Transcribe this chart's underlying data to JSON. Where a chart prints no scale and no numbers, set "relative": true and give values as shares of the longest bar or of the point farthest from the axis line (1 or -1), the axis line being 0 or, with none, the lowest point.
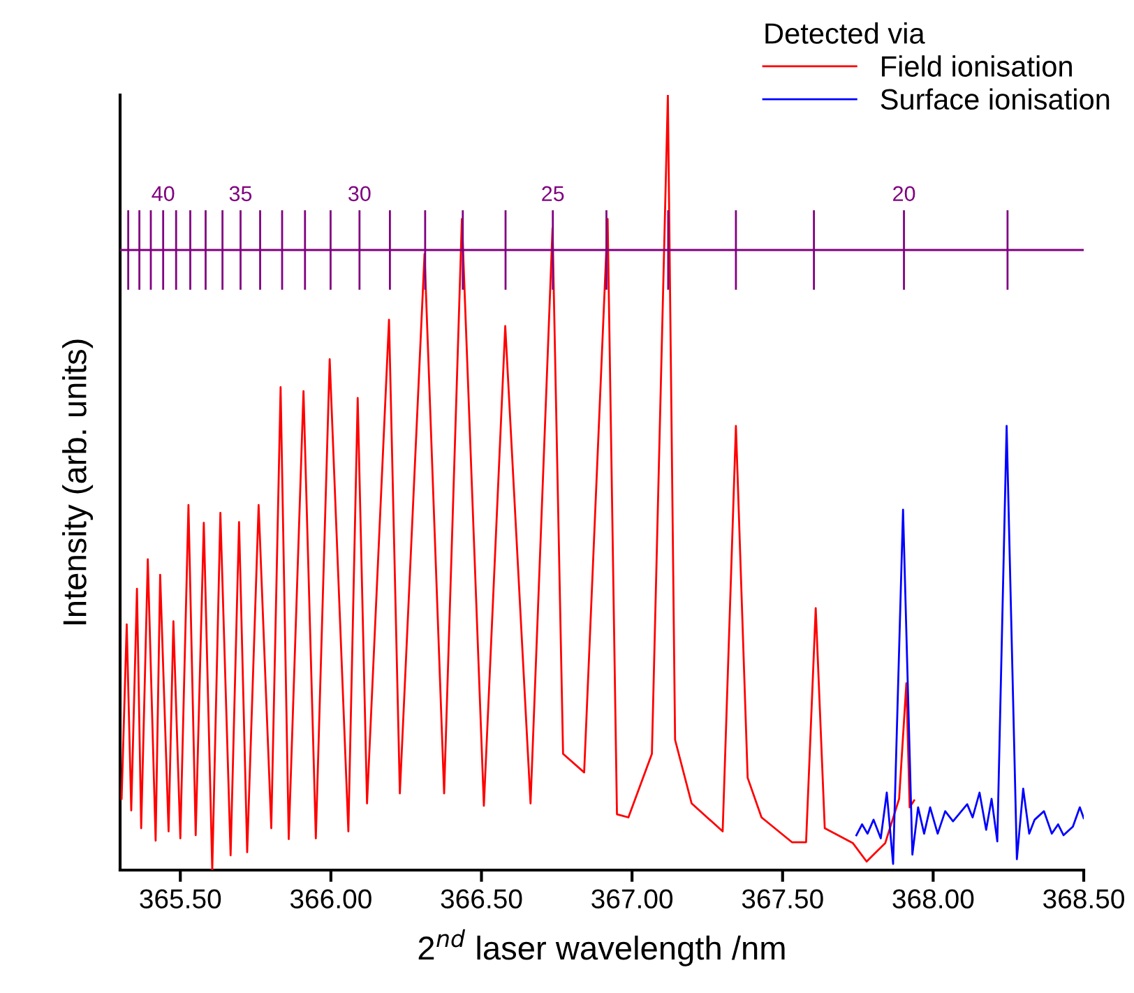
{
  "chart_data": {
    "type": "line",
    "relative": true,
    "xlabel": "2$^{nd}$ laser wavelength /nm",
    "ylabel": "Intensity (arb. units)",
    "legend_title": "Detected via",
    "legend": "top right",
    "grid": false,
    "xlim": [
      365.3,
      368.5
    ],
    "xticks": [
      {
        "value": 365.5,
        "label": "365.50"
      },
      {
        "value": 366.0,
        "label": "366.00"
      },
      {
        "value": 366.5,
        "label": "366.50"
      },
      {
        "value": 367.0,
        "label": "367.00"
      },
      {
        "value": 367.5,
        "label": "367.50"
      },
      {
        "value": 368.0,
        "label": "368.00"
      },
      {
        "value": 368.5,
        "label": "368.50"
      }
    ],
    "series": [
      {
        "name": "Field ionisation",
        "color": "#ff0000",
        "x": [
          365.305,
          365.322,
          365.337,
          365.356,
          365.37,
          365.392,
          365.418,
          365.433,
          365.461,
          365.477,
          365.5,
          365.527,
          365.551,
          365.578,
          365.606,
          365.633,
          365.667,
          365.695,
          365.722,
          365.76,
          365.802,
          365.833,
          365.86,
          365.909,
          365.95,
          365.996,
          366.058,
          366.089,
          366.12,
          366.193,
          366.229,
          366.311,
          366.376,
          366.435,
          366.508,
          366.579,
          366.663,
          366.736,
          366.771,
          366.841,
          366.919,
          366.95,
          366.988,
          367.066,
          367.119,
          367.143,
          367.198,
          367.301,
          367.345,
          367.384,
          367.43,
          367.531,
          367.578,
          367.61,
          367.64,
          367.733,
          367.779,
          367.841,
          367.887,
          367.911,
          367.922,
          367.937
        ],
        "values": [
          0.092,
          0.317,
          0.077,
          0.363,
          0.054,
          0.401,
          0.038,
          0.381,
          0.05,
          0.321,
          0.041,
          0.471,
          0.045,
          0.448,
          0.0,
          0.461,
          0.019,
          0.449,
          0.023,
          0.471,
          0.054,
          0.623,
          0.04,
          0.618,
          0.041,
          0.659,
          0.05,
          0.609,
          0.086,
          0.71,
          0.099,
          0.795,
          0.099,
          0.84,
          0.083,
          0.702,
          0.086,
          0.828,
          0.15,
          0.126,
          0.84,
          0.072,
          0.068,
          0.15,
          1.0,
          0.168,
          0.086,
          0.05,
          0.573,
          0.119,
          0.068,
          0.036,
          0.036,
          0.338,
          0.054,
          0.035,
          0.011,
          0.035,
          0.092,
          0.241,
          0.081,
          0.09
        ]
      },
      {
        "name": "Surface ionisation",
        "color": "#0000ff",
        "x": [
          367.745,
          367.764,
          367.782,
          367.802,
          367.826,
          367.846,
          367.867,
          367.9,
          367.931,
          367.95,
          367.97,
          367.99,
          368.015,
          368.04,
          368.066,
          368.113,
          368.131,
          368.154,
          368.176,
          368.194,
          368.213,
          368.244,
          368.278,
          368.299,
          368.319,
          368.337,
          368.368,
          368.394,
          368.415,
          368.433,
          368.464,
          368.487,
          368.5
        ],
        "values": [
          0.045,
          0.059,
          0.047,
          0.065,
          0.041,
          0.1,
          0.008,
          0.465,
          0.02,
          0.081,
          0.047,
          0.081,
          0.047,
          0.076,
          0.063,
          0.085,
          0.068,
          0.1,
          0.052,
          0.092,
          0.037,
          0.573,
          0.014,
          0.105,
          0.047,
          0.065,
          0.076,
          0.047,
          0.059,
          0.045,
          0.056,
          0.081,
          0.067
        ]
      },
      {
        "type": "line",
        "color": "#800080",
        "x": [
          365.3,
          368.5
        ],
        "values": [
          0.8,
          0.8
        ]
      },
      {
        "type": "line",
        "color": "#800080",
        "x": [
          365.327,
          365.327
        ],
        "values": [
          0.75,
          0.85
        ]
      },
      {
        "type": "line",
        "color": "#800080",
        "x": [
          365.364,
          365.364
        ],
        "values": [
          0.75,
          0.85
        ]
      },
      {
        "type": "line",
        "color": "#800080",
        "x": [
          365.402,
          365.402
        ],
        "values": [
          0.75,
          0.85
        ]
      },
      {
        "type": "line",
        "color": "#800080",
        "x": [
          365.443,
          365.443
        ],
        "values": [
          0.75,
          0.85
        ]
      },
      {
        "type": "line",
        "color": "#800080",
        "x": [
          365.486,
          365.486
        ],
        "values": [
          0.75,
          0.85
        ]
      },
      {
        "type": "line",
        "color": "#800080",
        "x": [
          365.533,
          365.533
        ],
        "values": [
          0.75,
          0.85
        ]
      },
      {
        "type": "line",
        "color": "#800080",
        "x": [
          365.584,
          365.584
        ],
        "values": [
          0.75,
          0.85
        ]
      },
      {
        "type": "line",
        "color": "#800080",
        "x": [
          365.64,
          365.64
        ],
        "values": [
          0.75,
          0.85
        ]
      },
      {
        "type": "line",
        "color": "#800080",
        "x": [
          365.7,
          365.7
        ],
        "values": [
          0.75,
          0.85
        ]
      },
      {
        "type": "line",
        "color": "#800080",
        "x": [
          365.765,
          365.765
        ],
        "values": [
          0.75,
          0.85
        ]
      },
      {
        "type": "line",
        "color": "#800080",
        "x": [
          365.838,
          365.838
        ],
        "values": [
          0.75,
          0.85
        ]
      },
      {
        "type": "line",
        "color": "#800080",
        "x": [
          365.914,
          365.914
        ],
        "values": [
          0.75,
          0.85
        ]
      },
      {
        "type": "line",
        "color": "#800080",
        "x": [
          365.999,
          365.999
        ],
        "values": [
          0.75,
          0.85
        ]
      },
      {
        "type": "line",
        "color": "#800080",
        "x": [
          366.095,
          366.095
        ],
        "values": [
          0.75,
          0.85
        ]
      },
      {
        "type": "line",
        "color": "#800080",
        "x": [
          366.196,
          366.196
        ],
        "values": [
          0.75,
          0.85
        ]
      },
      {
        "type": "line",
        "color": "#800080",
        "x": [
          366.313,
          366.313
        ],
        "values": [
          0.75,
          0.85
        ]
      },
      {
        "type": "line",
        "color": "#800080",
        "x": [
          366.438,
          366.438
        ],
        "values": [
          0.75,
          0.85
        ]
      },
      {
        "type": "line",
        "color": "#800080",
        "x": [
          366.58,
          366.58
        ],
        "values": [
          0.75,
          0.85
        ]
      },
      {
        "type": "line",
        "color": "#800080",
        "x": [
          366.737,
          366.737
        ],
        "values": [
          0.75,
          0.85
        ]
      },
      {
        "type": "line",
        "color": "#800080",
        "x": [
          366.915,
          366.915
        ],
        "values": [
          0.75,
          0.85
        ]
      },
      {
        "type": "line",
        "color": "#800080",
        "x": [
          367.12,
          367.12
        ],
        "values": [
          0.75,
          0.85
        ]
      },
      {
        "type": "line",
        "color": "#800080",
        "x": [
          367.345,
          367.345
        ],
        "values": [
          0.75,
          0.85
        ]
      },
      {
        "type": "line",
        "color": "#800080",
        "x": [
          367.604,
          367.604
        ],
        "values": [
          0.75,
          0.85
        ]
      },
      {
        "type": "line",
        "color": "#800080",
        "x": [
          367.903,
          367.903
        ],
        "values": [
          0.75,
          0.85
        ]
      },
      {
        "type": "line",
        "color": "#800080",
        "x": [
          368.247,
          368.247
        ],
        "values": [
          0.75,
          0.85
        ]
      }
    ],
    "annotations": [
      {
        "text": "40",
        "x": 365.443,
        "y": 0.85
      },
      {
        "text": "35",
        "x": 365.7,
        "y": 0.85
      },
      {
        "text": "30",
        "x": 366.095,
        "y": 0.85
      },
      {
        "text": "25",
        "x": 366.737,
        "y": 0.85
      },
      {
        "text": "20",
        "x": 367.903,
        "y": 0.85
      }
    ]
  }
}
